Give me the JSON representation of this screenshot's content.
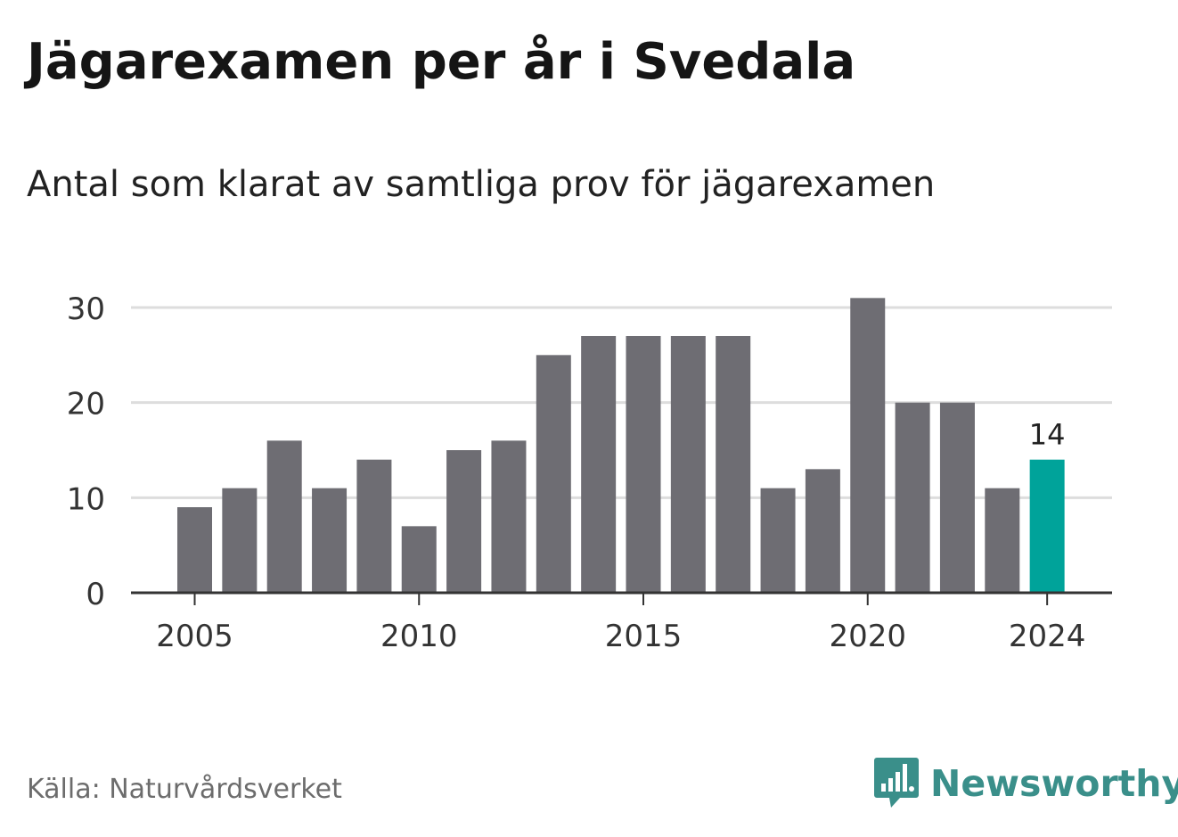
{
  "header": {
    "title": "Jägarexamen per år i Svedala",
    "subtitle": "Antal som klarat av samtliga prov för jägarexamen"
  },
  "footer": {
    "source": "Källa: Naturvårdsverket",
    "brand": "Newsworthy",
    "brand_icon": "newsworthy-logo-icon"
  },
  "colors": {
    "bar": "#6e6d73",
    "highlight": "#00a39a",
    "grid": "#dddddd",
    "axis": "#333333",
    "brand": "#3a8f8a"
  },
  "chart_data": {
    "type": "bar",
    "title": "Jägarexamen per år i Svedala",
    "subtitle": "Antal som klarat av samtliga prov för jägarexamen",
    "categories": [
      2005,
      2006,
      2007,
      2008,
      2009,
      2010,
      2011,
      2012,
      2013,
      2014,
      2015,
      2016,
      2017,
      2018,
      2019,
      2020,
      2021,
      2022,
      2023,
      2024
    ],
    "values": [
      9,
      11,
      16,
      11,
      14,
      7,
      15,
      16,
      25,
      27,
      27,
      27,
      27,
      11,
      13,
      31,
      20,
      20,
      11,
      14
    ],
    "highlight_index": 19,
    "highlight_label": "14",
    "x_tick_labels": [
      "2005",
      "2010",
      "2015",
      "2020",
      "2024"
    ],
    "y_ticks": [
      0,
      10,
      20,
      30
    ],
    "ylim": [
      0,
      31
    ],
    "grid": true,
    "legend": "none",
    "xlabel": "",
    "ylabel": ""
  }
}
